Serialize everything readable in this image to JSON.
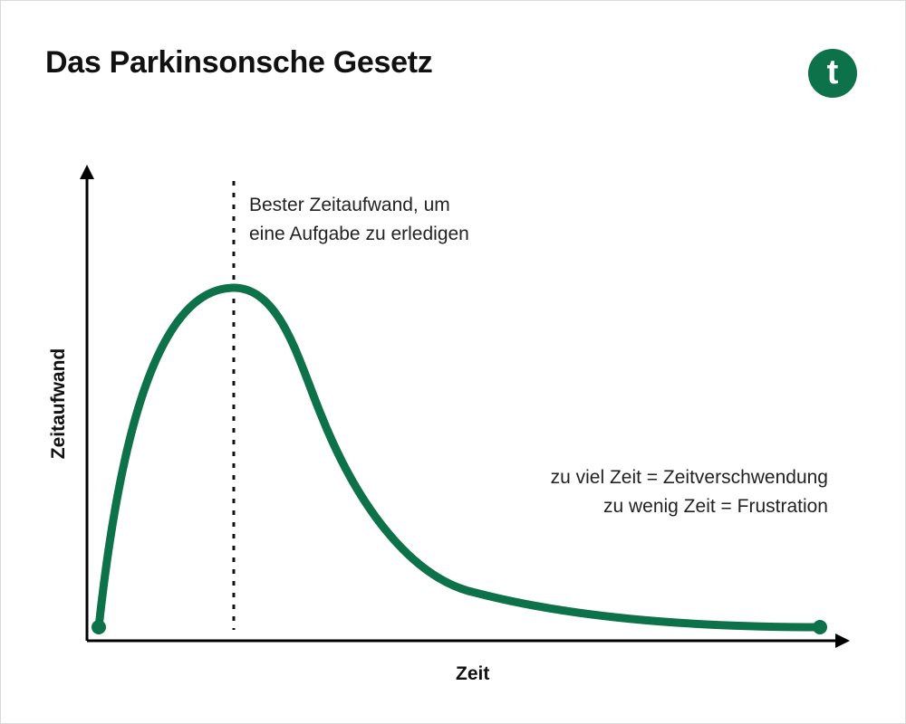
{
  "title": "Das Parkinsonsche Gesetz",
  "logo_letter": "t",
  "colors": {
    "accent": "#0d7249",
    "axis": "#000000",
    "text": "#222222"
  },
  "diagram": {
    "x_axis_label": "Zeit",
    "y_axis_label": "Zeitaufwand",
    "annotation_optimum": [
      "Bester Zeitaufwand, um",
      "eine Aufgabe zu erledigen"
    ],
    "annotation_tradeoff": [
      "zu viel Zeit = Zeitverschwendung",
      "zu wenig Zeit = Frustration"
    ]
  }
}
